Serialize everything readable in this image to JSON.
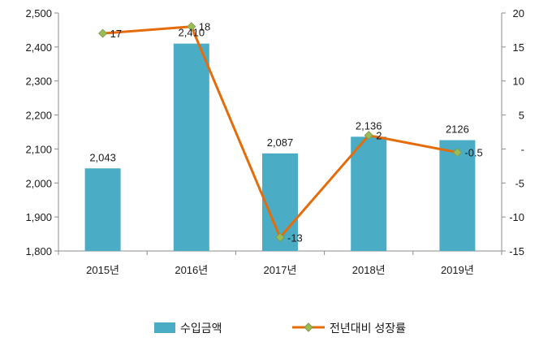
{
  "chart_data": {
    "type": "bar+line",
    "categories": [
      "2015년",
      "2016년",
      "2017년",
      "2018년",
      "2019년"
    ],
    "series": [
      {
        "name": "수입금액",
        "type": "bar",
        "axis": "left",
        "values": [
          2043,
          2410,
          2087,
          2136,
          2126
        ],
        "labels": [
          "2,043",
          "2,410",
          "2,087",
          "2,136",
          "2126"
        ],
        "color": "#4BACC6"
      },
      {
        "name": "전년대비 성장률",
        "type": "line",
        "axis": "right",
        "values": [
          17,
          18,
          -13,
          2,
          -0.5
        ],
        "labels": [
          "17",
          "18",
          "-13",
          "2",
          "-0.5"
        ],
        "color": "#E46C0A",
        "marker_color": "#9BBB59"
      }
    ],
    "left_axis": {
      "ylim": [
        1800,
        2500
      ],
      "ticks": [
        1800,
        1900,
        2000,
        2100,
        2200,
        2300,
        2400,
        2500
      ],
      "tick_labels": [
        "1,800",
        "1,900",
        "2,000",
        "2,100",
        "2,200",
        "2,300",
        "2,400",
        "2,500"
      ]
    },
    "right_axis": {
      "ylim": [
        -15,
        20
      ],
      "ticks": [
        -15,
        -10,
        -5,
        0,
        5,
        10,
        15,
        20
      ],
      "tick_labels": [
        "-15",
        "-10",
        "-5",
        "-",
        "5",
        "10",
        "15",
        "20"
      ]
    },
    "grid": false,
    "legend_position": "bottom"
  }
}
